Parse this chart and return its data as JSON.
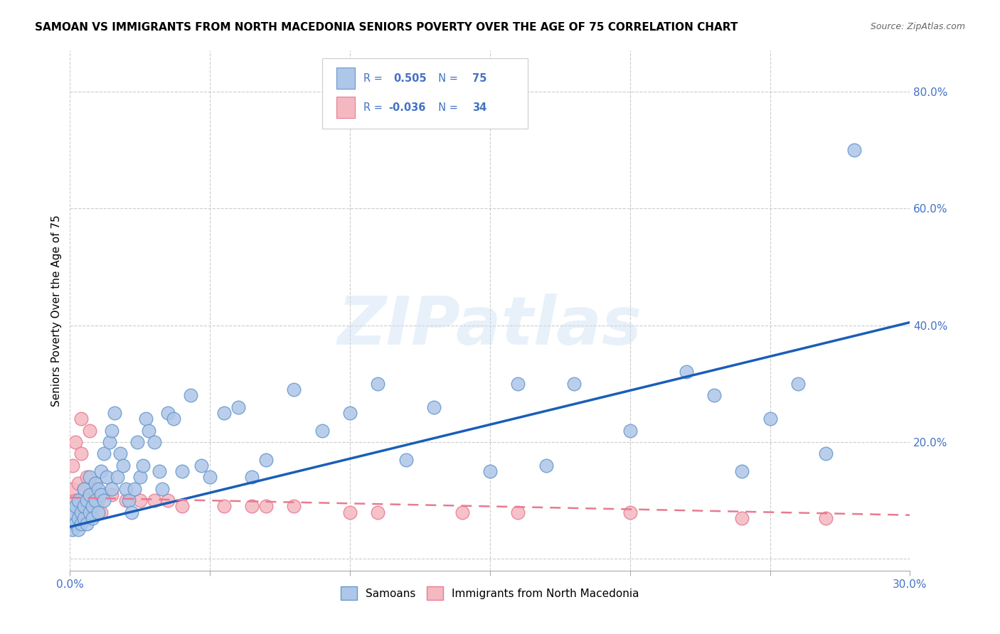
{
  "title": "SAMOAN VS IMMIGRANTS FROM NORTH MACEDONIA SENIORS POVERTY OVER THE AGE OF 75 CORRELATION CHART",
  "source": "Source: ZipAtlas.com",
  "ylabel": "Seniors Poverty Over the Age of 75",
  "xlim": [
    0.0,
    0.3
  ],
  "ylim": [
    -0.02,
    0.87
  ],
  "xticks": [
    0.0,
    0.05,
    0.1,
    0.15,
    0.2,
    0.25,
    0.3
  ],
  "yticks": [
    0.0,
    0.2,
    0.4,
    0.6,
    0.8
  ],
  "ytick_labels": [
    "",
    "20.0%",
    "40.0%",
    "60.0%",
    "80.0%"
  ],
  "xtick_labels": [
    "0.0%",
    "",
    "",
    "",
    "",
    "",
    "30.0%"
  ],
  "group1_label": "Samoans",
  "group2_label": "Immigrants from North Macedonia",
  "group1_color": "#aec6e8",
  "group2_color": "#f4b8c1",
  "group1_edge_color": "#6699cc",
  "group2_edge_color": "#e87a90",
  "line1_color": "#1a5eb8",
  "line2_color": "#e87a90",
  "R1": 0.505,
  "N1": 75,
  "R2": -0.036,
  "N2": 34,
  "legend_color": "#4472c4",
  "watermark": "ZIPatlas",
  "background_color": "#ffffff",
  "grid_color": "#cccccc",
  "axis_label_color": "#4472c4",
  "samoans_x": [
    0.001,
    0.001,
    0.002,
    0.002,
    0.003,
    0.003,
    0.003,
    0.004,
    0.004,
    0.005,
    0.005,
    0.005,
    0.006,
    0.006,
    0.007,
    0.007,
    0.007,
    0.008,
    0.008,
    0.009,
    0.009,
    0.01,
    0.01,
    0.011,
    0.011,
    0.012,
    0.012,
    0.013,
    0.014,
    0.015,
    0.015,
    0.016,
    0.017,
    0.018,
    0.019,
    0.02,
    0.021,
    0.022,
    0.023,
    0.024,
    0.025,
    0.026,
    0.027,
    0.028,
    0.03,
    0.032,
    0.033,
    0.035,
    0.037,
    0.04,
    0.043,
    0.047,
    0.05,
    0.055,
    0.06,
    0.065,
    0.07,
    0.08,
    0.09,
    0.1,
    0.11,
    0.12,
    0.13,
    0.15,
    0.16,
    0.17,
    0.18,
    0.2,
    0.22,
    0.23,
    0.24,
    0.25,
    0.26,
    0.27,
    0.28
  ],
  "samoans_y": [
    0.05,
    0.08,
    0.06,
    0.09,
    0.07,
    0.05,
    0.1,
    0.06,
    0.08,
    0.07,
    0.09,
    0.12,
    0.06,
    0.1,
    0.08,
    0.11,
    0.14,
    0.09,
    0.07,
    0.1,
    0.13,
    0.08,
    0.12,
    0.11,
    0.15,
    0.1,
    0.18,
    0.14,
    0.2,
    0.12,
    0.22,
    0.25,
    0.14,
    0.18,
    0.16,
    0.12,
    0.1,
    0.08,
    0.12,
    0.2,
    0.14,
    0.16,
    0.24,
    0.22,
    0.2,
    0.15,
    0.12,
    0.25,
    0.24,
    0.15,
    0.28,
    0.16,
    0.14,
    0.25,
    0.26,
    0.14,
    0.17,
    0.29,
    0.22,
    0.25,
    0.3,
    0.17,
    0.26,
    0.15,
    0.3,
    0.16,
    0.3,
    0.22,
    0.32,
    0.28,
    0.15,
    0.24,
    0.3,
    0.18,
    0.7
  ],
  "macedonia_x": [
    0.001,
    0.001,
    0.002,
    0.002,
    0.003,
    0.003,
    0.004,
    0.004,
    0.005,
    0.005,
    0.006,
    0.007,
    0.007,
    0.008,
    0.009,
    0.01,
    0.011,
    0.015,
    0.02,
    0.025,
    0.03,
    0.035,
    0.04,
    0.055,
    0.065,
    0.07,
    0.08,
    0.1,
    0.11,
    0.14,
    0.16,
    0.2,
    0.24,
    0.27
  ],
  "macedonia_y": [
    0.12,
    0.16,
    0.1,
    0.2,
    0.13,
    0.08,
    0.18,
    0.24,
    0.12,
    0.1,
    0.14,
    0.09,
    0.22,
    0.11,
    0.13,
    0.1,
    0.08,
    0.11,
    0.1,
    0.1,
    0.1,
    0.1,
    0.09,
    0.09,
    0.09,
    0.09,
    0.09,
    0.08,
    0.08,
    0.08,
    0.08,
    0.08,
    0.07,
    0.07
  ],
  "line1_x0": 0.0,
  "line1_x1": 0.3,
  "line1_y0": 0.055,
  "line1_y1": 0.405,
  "line2_x0": 0.0,
  "line2_x1": 0.3,
  "line2_y0": 0.105,
  "line2_y1": 0.075
}
